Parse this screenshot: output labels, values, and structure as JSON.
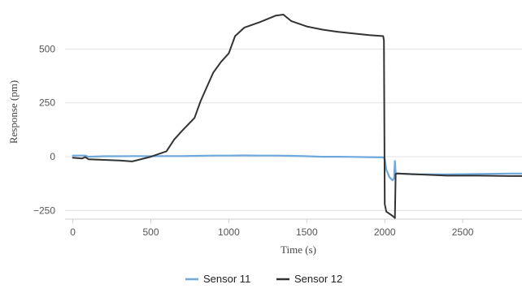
{
  "chart_data": {
    "type": "line",
    "xlabel": "Time (s)",
    "ylabel": "Response (pm)",
    "xlim": [
      -50,
      2880
    ],
    "ylim": [
      -290,
      690
    ],
    "x_ticks": [
      0,
      500,
      1000,
      1500,
      2000,
      2500
    ],
    "y_ticks": [
      -250,
      0,
      250,
      500
    ],
    "y_tick_labels": [
      "−250",
      "0",
      "250",
      "500"
    ],
    "grid": "horizontal",
    "legend_position": "bottom-center",
    "series": [
      {
        "name": "Sensor 11",
        "color": "#6fa8dc",
        "x": [
          0,
          80,
          100,
          200,
          300,
          400,
          500,
          600,
          700,
          800,
          900,
          1000,
          1100,
          1200,
          1300,
          1400,
          1500,
          1600,
          1700,
          1800,
          1900,
          1990,
          2000,
          2010,
          2030,
          2050,
          2060,
          2065,
          2070,
          2080,
          2200,
          2400,
          2600,
          2800,
          2880
        ],
        "y": [
          5,
          5,
          0,
          2,
          2,
          3,
          2,
          3,
          3,
          4,
          5,
          5,
          6,
          5,
          5,
          4,
          2,
          0,
          0,
          -1,
          -2,
          -3,
          -10,
          -60,
          -95,
          -110,
          -100,
          -20,
          -75,
          -78,
          -82,
          -82,
          -80,
          -78,
          -78
        ]
      },
      {
        "name": "Sensor 12",
        "color": "#333333",
        "x": [
          0,
          60,
          80,
          100,
          200,
          300,
          380,
          420,
          500,
          600,
          650,
          700,
          780,
          820,
          900,
          950,
          1000,
          1040,
          1100,
          1200,
          1300,
          1350,
          1400,
          1500,
          1600,
          1700,
          1800,
          1900,
          1990,
          1995,
          2000,
          2010,
          2050,
          2065,
          2070,
          2080,
          2200,
          2400,
          2600,
          2800,
          2880
        ],
        "y": [
          -5,
          -8,
          -2,
          -12,
          -15,
          -18,
          -22,
          -15,
          0,
          25,
          80,
          120,
          180,
          260,
          390,
          440,
          480,
          560,
          600,
          625,
          655,
          660,
          630,
          605,
          590,
          580,
          572,
          565,
          560,
          540,
          -220,
          -255,
          -275,
          -285,
          -80,
          -78,
          -82,
          -88,
          -88,
          -90,
          -90
        ]
      }
    ]
  }
}
